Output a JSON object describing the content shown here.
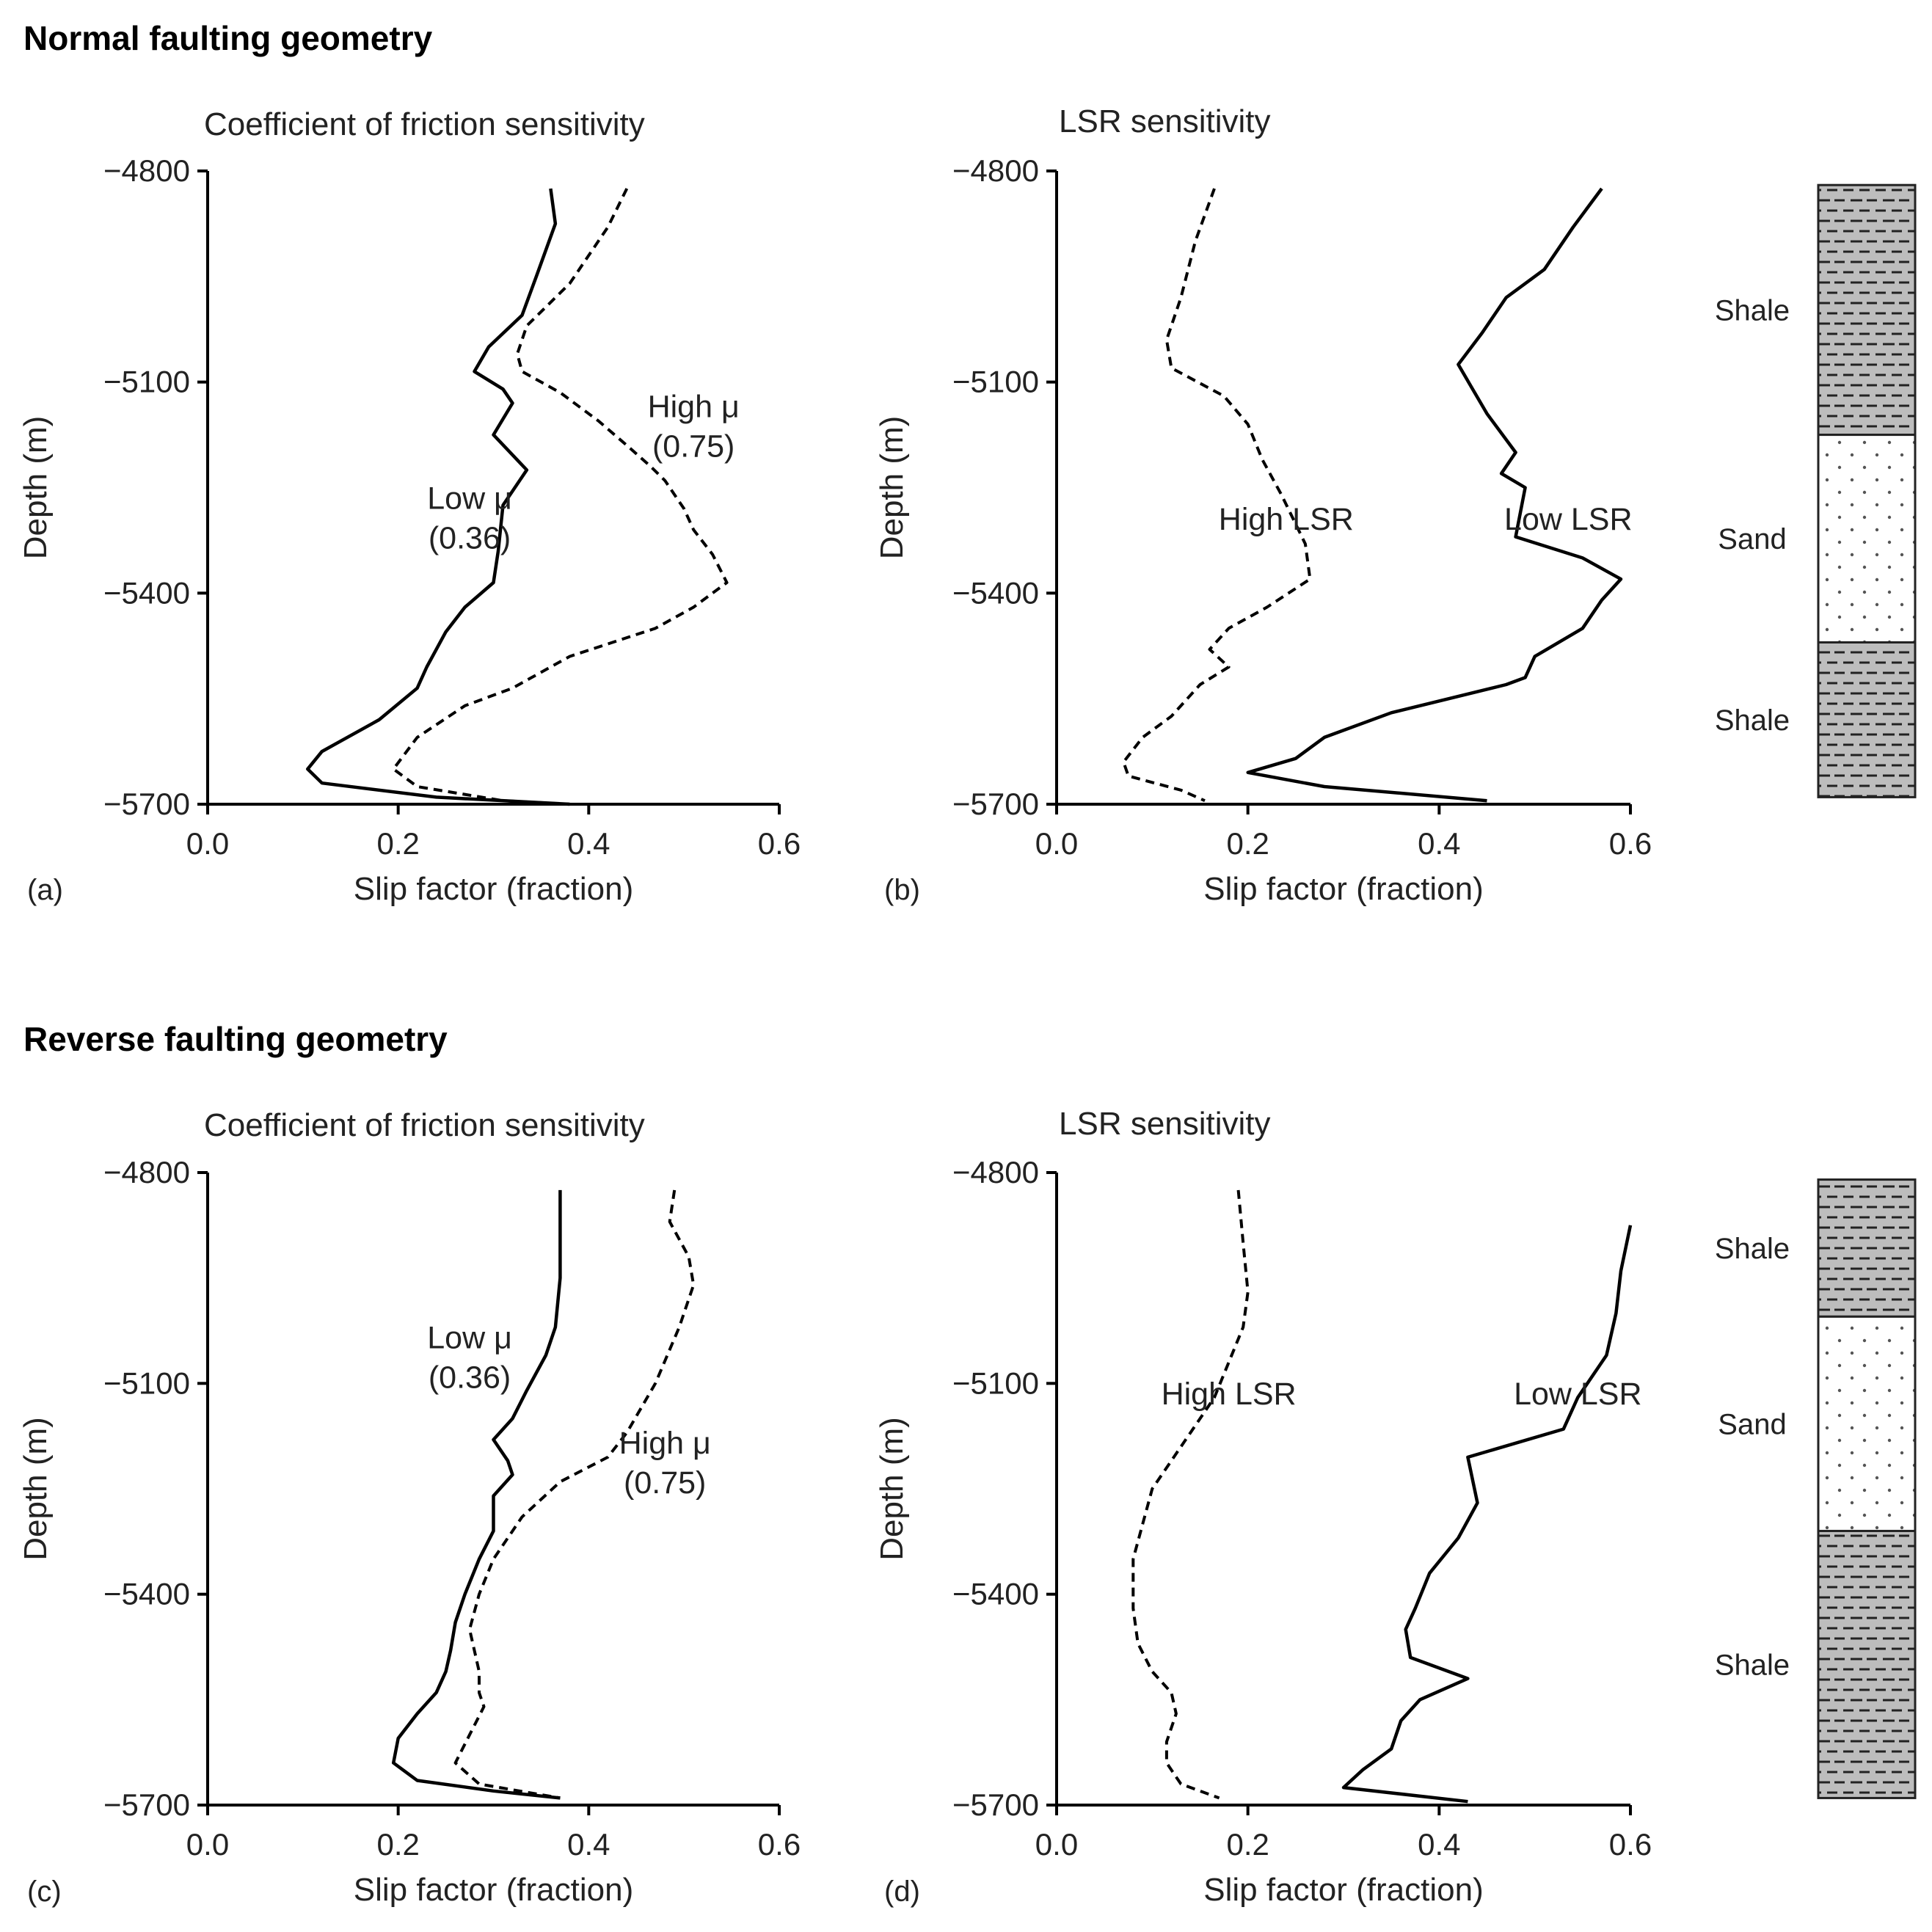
{
  "sections": [
    {
      "title": "Normal faulting geometry"
    },
    {
      "title": "Reverse faulting geometry"
    }
  ],
  "lithology_units": {
    "shale": "Shale",
    "sand": "Sand"
  },
  "lithology_columns": [
    {
      "top_depth": -4820,
      "bottom_depth": -5690,
      "units": [
        {
          "type": "shale",
          "label": "Shale",
          "from": -4820,
          "to": -5175
        },
        {
          "type": "sand",
          "label": "Sand",
          "from": -5175,
          "to": -5470
        },
        {
          "type": "shale",
          "label": "Shale",
          "from": -5470,
          "to": -5690
        }
      ]
    },
    {
      "top_depth": -4810,
      "bottom_depth": -5690,
      "units": [
        {
          "type": "shale",
          "label": "Shale",
          "from": -4810,
          "to": -5005
        },
        {
          "type": "sand",
          "label": "Sand",
          "from": -5005,
          "to": -5310
        },
        {
          "type": "shale",
          "label": "Shale",
          "from": -5310,
          "to": -5690
        }
      ]
    }
  ],
  "chart_data": [
    {
      "type": "line",
      "panel": "(a)",
      "title": "Coefficient of friction sensitivity",
      "xlabel": "Slip factor (fraction)",
      "ylabel": "Depth (m)",
      "xlim": [
        0.0,
        0.6
      ],
      "ylim": [
        -5700,
        -4800
      ],
      "xticks": [
        "0.0",
        "0.2",
        "0.4",
        "0.6"
      ],
      "yticks": [
        "-4800",
        "-5100",
        "-5400",
        "-5700"
      ],
      "series": [
        {
          "name": "Low μ (0.36)",
          "style": "solid",
          "points": [
            [
              0.36,
              -4825
            ],
            [
              0.365,
              -4875
            ],
            [
              0.345,
              -4950
            ],
            [
              0.33,
              -5005
            ],
            [
              0.295,
              -5050
            ],
            [
              0.28,
              -5085
            ],
            [
              0.31,
              -5110
            ],
            [
              0.32,
              -5130
            ],
            [
              0.3,
              -5175
            ],
            [
              0.335,
              -5225
            ],
            [
              0.31,
              -5275
            ],
            [
              0.305,
              -5340
            ],
            [
              0.3,
              -5385
            ],
            [
              0.27,
              -5420
            ],
            [
              0.25,
              -5455
            ],
            [
              0.23,
              -5505
            ],
            [
              0.22,
              -5535
            ],
            [
              0.18,
              -5580
            ],
            [
              0.12,
              -5625
            ],
            [
              0.105,
              -5650
            ],
            [
              0.12,
              -5670
            ],
            [
              0.24,
              -5690
            ],
            [
              0.38,
              -5700
            ]
          ]
        },
        {
          "name": "High μ (0.75)",
          "style": "dashed",
          "points": [
            [
              0.44,
              -4825
            ],
            [
              0.42,
              -4880
            ],
            [
              0.38,
              -4960
            ],
            [
              0.335,
              -5020
            ],
            [
              0.325,
              -5060
            ],
            [
              0.33,
              -5085
            ],
            [
              0.37,
              -5115
            ],
            [
              0.41,
              -5155
            ],
            [
              0.44,
              -5190
            ],
            [
              0.465,
              -5220
            ],
            [
              0.48,
              -5240
            ],
            [
              0.5,
              -5280
            ],
            [
              0.51,
              -5310
            ],
            [
              0.53,
              -5345
            ],
            [
              0.545,
              -5385
            ],
            [
              0.53,
              -5400
            ],
            [
              0.51,
              -5420
            ],
            [
              0.47,
              -5450
            ],
            [
              0.38,
              -5490
            ],
            [
              0.34,
              -5520
            ],
            [
              0.32,
              -5535
            ],
            [
              0.27,
              -5560
            ],
            [
              0.22,
              -5605
            ],
            [
              0.195,
              -5650
            ],
            [
              0.22,
              -5675
            ],
            [
              0.31,
              -5695
            ],
            [
              0.38,
              -5700
            ]
          ]
        }
      ],
      "annotations": [
        {
          "lines": [
            "Low μ",
            "(0.36)"
          ],
          "at": [
            0.275,
            -5280
          ]
        },
        {
          "lines": [
            "High μ",
            "(0.75)"
          ],
          "at": [
            0.51,
            -5150
          ]
        }
      ]
    },
    {
      "type": "line",
      "panel": "(b)",
      "title": "LSR sensitivity",
      "xlabel": "Slip factor (fraction)",
      "ylabel": "Depth (m)",
      "xlim": [
        0.0,
        0.6
      ],
      "ylim": [
        -5700,
        -4800
      ],
      "xticks": [
        "0.0",
        "0.2",
        "0.4",
        "0.6"
      ],
      "yticks": [
        "-4800",
        "-5100",
        "-5400",
        "-5700"
      ],
      "series": [
        {
          "name": "High LSR",
          "style": "dashed",
          "points": [
            [
              0.165,
              -4825
            ],
            [
              0.145,
              -4900
            ],
            [
              0.13,
              -4980
            ],
            [
              0.115,
              -5040
            ],
            [
              0.12,
              -5080
            ],
            [
              0.175,
              -5120
            ],
            [
              0.2,
              -5160
            ],
            [
              0.215,
              -5210
            ],
            [
              0.235,
              -5260
            ],
            [
              0.26,
              -5330
            ],
            [
              0.265,
              -5380
            ],
            [
              0.22,
              -5420
            ],
            [
              0.18,
              -5450
            ],
            [
              0.16,
              -5480
            ],
            [
              0.18,
              -5505
            ],
            [
              0.15,
              -5530
            ],
            [
              0.12,
              -5575
            ],
            [
              0.09,
              -5605
            ],
            [
              0.07,
              -5640
            ],
            [
              0.075,
              -5660
            ],
            [
              0.13,
              -5680
            ],
            [
              0.155,
              -5695
            ]
          ]
        },
        {
          "name": "Low LSR",
          "style": "solid",
          "points": [
            [
              0.57,
              -4825
            ],
            [
              0.54,
              -4880
            ],
            [
              0.51,
              -4940
            ],
            [
              0.47,
              -4980
            ],
            [
              0.445,
              -5030
            ],
            [
              0.42,
              -5075
            ],
            [
              0.435,
              -5110
            ],
            [
              0.45,
              -5145
            ],
            [
              0.48,
              -5200
            ],
            [
              0.465,
              -5230
            ],
            [
              0.49,
              -5250
            ],
            [
              0.48,
              -5320
            ],
            [
              0.55,
              -5350
            ],
            [
              0.59,
              -5380
            ],
            [
              0.57,
              -5410
            ],
            [
              0.55,
              -5450
            ],
            [
              0.5,
              -5490
            ],
            [
              0.49,
              -5520
            ],
            [
              0.47,
              -5530
            ],
            [
              0.41,
              -5550
            ],
            [
              0.35,
              -5570
            ],
            [
              0.28,
              -5605
            ],
            [
              0.25,
              -5635
            ],
            [
              0.2,
              -5655
            ],
            [
              0.28,
              -5675
            ],
            [
              0.45,
              -5695
            ]
          ]
        }
      ],
      "annotations": [
        {
          "lines": [
            "High LSR"
          ],
          "at": [
            0.24,
            -5310
          ]
        },
        {
          "lines": [
            "Low LSR"
          ],
          "at": [
            0.535,
            -5310
          ]
        }
      ]
    },
    {
      "type": "line",
      "panel": "(c)",
      "title": "Coefficient of friction sensitivity",
      "xlabel": "Slip factor (fraction)",
      "ylabel": "Depth (m)",
      "xlim": [
        0.0,
        0.6
      ],
      "ylim": [
        -5700,
        -4800
      ],
      "xticks": [
        "0.0",
        "0.2",
        "0.4",
        "0.6"
      ],
      "yticks": [
        "-4800",
        "-5100",
        "-5400",
        "-5700"
      ],
      "series": [
        {
          "name": "Low μ (0.36)",
          "style": "solid",
          "points": [
            [
              0.37,
              -4825
            ],
            [
              0.37,
              -4950
            ],
            [
              0.365,
              -5020
            ],
            [
              0.355,
              -5060
            ],
            [
              0.335,
              -5110
            ],
            [
              0.32,
              -5150
            ],
            [
              0.3,
              -5180
            ],
            [
              0.315,
              -5210
            ],
            [
              0.32,
              -5230
            ],
            [
              0.3,
              -5260
            ],
            [
              0.3,
              -5310
            ],
            [
              0.285,
              -5350
            ],
            [
              0.27,
              -5400
            ],
            [
              0.26,
              -5440
            ],
            [
              0.255,
              -5480
            ],
            [
              0.25,
              -5510
            ],
            [
              0.24,
              -5540
            ],
            [
              0.22,
              -5570
            ],
            [
              0.2,
              -5605
            ],
            [
              0.195,
              -5640
            ],
            [
              0.22,
              -5665
            ],
            [
              0.3,
              -5680
            ],
            [
              0.37,
              -5690
            ]
          ]
        },
        {
          "name": "High μ (0.75)",
          "style": "dashed",
          "points": [
            [
              0.49,
              -4825
            ],
            [
              0.485,
              -4870
            ],
            [
              0.505,
              -4920
            ],
            [
              0.51,
              -4960
            ],
            [
              0.495,
              -5020
            ],
            [
              0.47,
              -5100
            ],
            [
              0.44,
              -5170
            ],
            [
              0.42,
              -5205
            ],
            [
              0.37,
              -5240
            ],
            [
              0.33,
              -5290
            ],
            [
              0.3,
              -5350
            ],
            [
              0.285,
              -5400
            ],
            [
              0.275,
              -5450
            ],
            [
              0.285,
              -5510
            ],
            [
              0.285,
              -5540
            ],
            [
              0.29,
              -5560
            ],
            [
              0.275,
              -5600
            ],
            [
              0.26,
              -5640
            ],
            [
              0.285,
              -5670
            ],
            [
              0.37,
              -5690
            ]
          ]
        }
      ],
      "annotations": [
        {
          "lines": [
            "Low μ",
            "(0.36)"
          ],
          "at": [
            0.275,
            -5050
          ]
        },
        {
          "lines": [
            "High μ",
            "(0.75)"
          ],
          "at": [
            0.48,
            -5200
          ]
        }
      ]
    },
    {
      "type": "line",
      "panel": "(d)",
      "title": "LSR sensitivity",
      "xlabel": "Slip factor (fraction)",
      "ylabel": "Depth (m)",
      "xlim": [
        0.0,
        0.6
      ],
      "ylim": [
        -5700,
        -4800
      ],
      "xticks": [
        "0.0",
        "0.2",
        "0.4",
        "0.6"
      ],
      "yticks": [
        "-4800",
        "-5100",
        "-5400",
        "-5700"
      ],
      "series": [
        {
          "name": "High LSR",
          "style": "dashed",
          "points": [
            [
              0.19,
              -4825
            ],
            [
              0.195,
              -4900
            ],
            [
              0.2,
              -4970
            ],
            [
              0.195,
              -5020
            ],
            [
              0.18,
              -5070
            ],
            [
              0.165,
              -5120
            ],
            [
              0.14,
              -5170
            ],
            [
              0.12,
              -5210
            ],
            [
              0.1,
              -5250
            ],
            [
              0.09,
              -5300
            ],
            [
              0.08,
              -5350
            ],
            [
              0.08,
              -5420
            ],
            [
              0.085,
              -5470
            ],
            [
              0.1,
              -5510
            ],
            [
              0.12,
              -5540
            ],
            [
              0.125,
              -5570
            ],
            [
              0.115,
              -5610
            ],
            [
              0.115,
              -5640
            ],
            [
              0.13,
              -5670
            ],
            [
              0.17,
              -5690
            ]
          ]
        },
        {
          "name": "Low LSR",
          "style": "solid",
          "points": [
            [
              0.6,
              -4875
            ],
            [
              0.59,
              -4940
            ],
            [
              0.585,
              -5000
            ],
            [
              0.575,
              -5060
            ],
            [
              0.545,
              -5120
            ],
            [
              0.53,
              -5165
            ],
            [
              0.43,
              -5205
            ],
            [
              0.44,
              -5270
            ],
            [
              0.42,
              -5320
            ],
            [
              0.39,
              -5370
            ],
            [
              0.375,
              -5420
            ],
            [
              0.365,
              -5450
            ],
            [
              0.37,
              -5490
            ],
            [
              0.43,
              -5520
            ],
            [
              0.38,
              -5550
            ],
            [
              0.36,
              -5580
            ],
            [
              0.35,
              -5620
            ],
            [
              0.32,
              -5650
            ],
            [
              0.3,
              -5675
            ],
            [
              0.43,
              -5695
            ]
          ]
        }
      ],
      "annotations": [
        {
          "lines": [
            "High LSR"
          ],
          "at": [
            0.18,
            -5130
          ]
        },
        {
          "lines": [
            "Low LSR"
          ],
          "at": [
            0.545,
            -5130
          ]
        }
      ]
    }
  ]
}
